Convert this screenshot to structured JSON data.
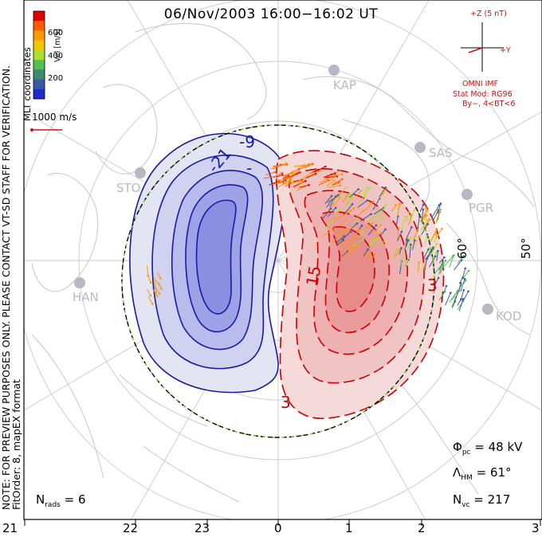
{
  "title": "06/Nov/2003  16:00−16:02  UT",
  "coord_label": "MLT coordinates",
  "colorbar": {
    "label": "Vel [m/s]",
    "ticks": [
      "600",
      "400",
      "200"
    ],
    "colors": [
      "#e00000",
      "#ff5a00",
      "#ff9a00",
      "#f0c800",
      "#a8e030",
      "#50c050",
      "#3c8c70",
      "#3a5aa0",
      "#1f2ccc"
    ]
  },
  "vector_scale_label": "1000 m/s",
  "notice_text": "NOTE: FOR PREVIEW PURPOSES ONLY. PLEASE CONTACT VT-SD STAFF FOR VERIFICATION.",
  "fit_text": "FitOrder: 8, mapEX format",
  "stats": {
    "phi_pc": "48 kV",
    "lambda_hm": "61°",
    "n_vc": "217",
    "n_rads": "6"
  },
  "imf": {
    "z_label": "+Z (5 nT)",
    "y_label": "+Y",
    "source": "OMNI IMF",
    "stat_mod": "Stat Mod: RG96",
    "condition": "By−, 4<BT<6"
  },
  "stations": [
    "KAP",
    "SAS",
    "PGR",
    "KOD",
    "STO",
    "HAN"
  ],
  "latitude_labels": [
    "60°",
    "50°"
  ],
  "mlt_labels": [
    "21",
    "22",
    "23",
    "0",
    "1",
    "2",
    "3"
  ],
  "contour_labels": {
    "negative": [
      "-9",
      "-21",
      "-"
    ],
    "positive": [
      "15",
      "3",
      "3"
    ]
  },
  "colors": {
    "negative_cell": "#1a1aa6",
    "positive_cell": "#cc0000",
    "grid": "#c8c8d2",
    "coast": "#c8c8d0",
    "text_red": "#d01010"
  }
}
